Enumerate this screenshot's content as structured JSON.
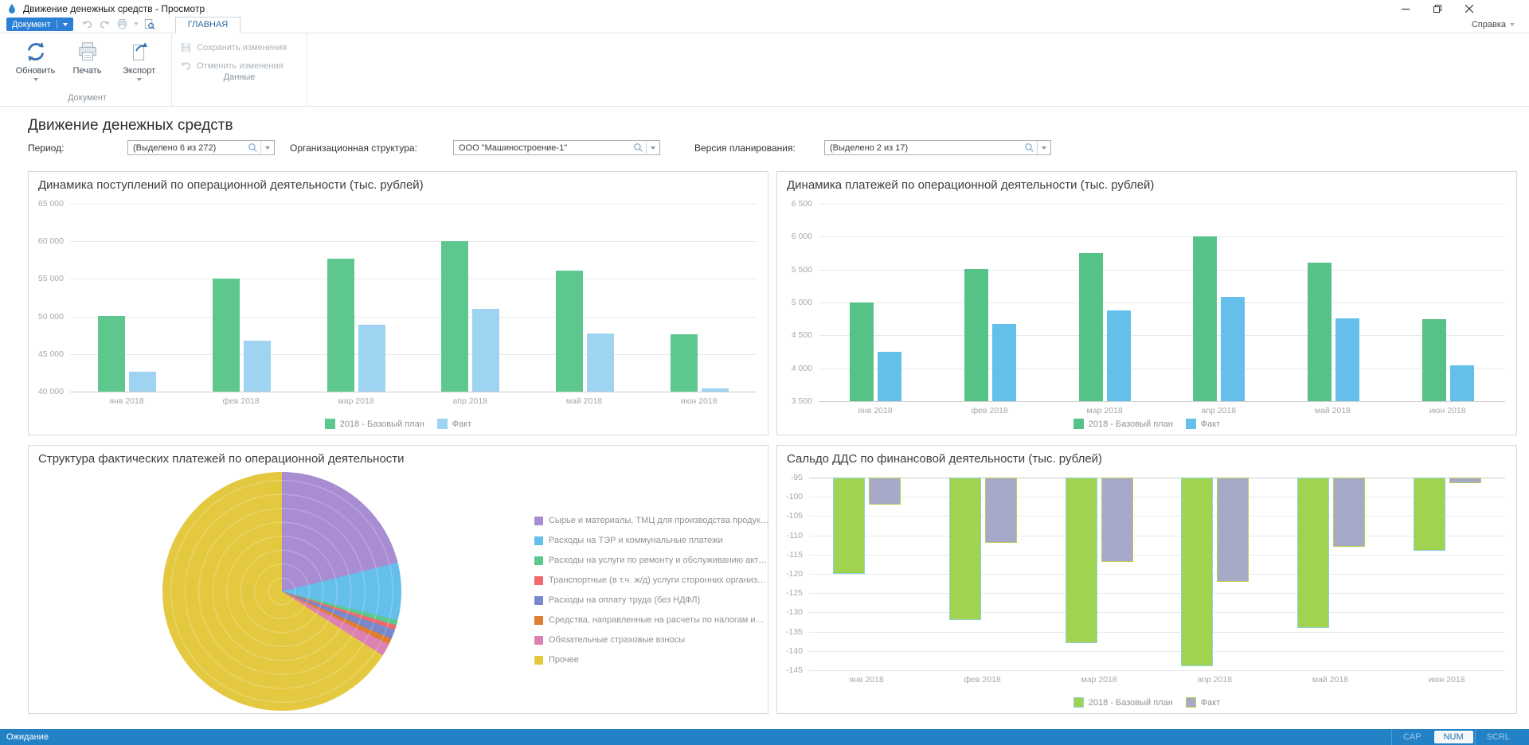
{
  "window": {
    "title": "Движение денежных средств - Просмотр"
  },
  "ribbon": {
    "document_button": "Документ",
    "tab": "ГЛАВНАЯ",
    "help": "Справка",
    "buttons": {
      "refresh": "Обновить",
      "print": "Печать",
      "export": "Экспорт",
      "save": "Сохранить изменения",
      "undo": "Отменить изменения"
    },
    "groups": {
      "document": "Документ",
      "data": "Данные"
    }
  },
  "page": {
    "title": "Движение денежных средств",
    "filters": [
      {
        "label": "Период:",
        "value": "(Выделено 6 из 272)"
      },
      {
        "label": "Организационная структура:",
        "value": "ООО \"Машиностроение-1\""
      },
      {
        "label": "Версия планирования:",
        "value": "(Выделено 2 из 17)"
      }
    ]
  },
  "statusbar": {
    "status": "Ожидание",
    "indicators": [
      "CAP",
      "NUM",
      "SCRL"
    ],
    "active_indicator": "NUM"
  },
  "colors": {
    "plan_green": "#5ec78e",
    "fact_lightblue": "#9ed3f2",
    "fact_blue": "#64bfeb",
    "saldo_green": "#a0d450",
    "saldo_fact_gray": "#a6aac8",
    "statusbar_blue": "#2382c6",
    "accent_blue": "#2b7fd4"
  },
  "chart_data": [
    {
      "type": "bar",
      "title": "Динамика поступлений по операционной деятельности (тыс. рублей)",
      "categories": [
        "янв 2018",
        "фев 2018",
        "мар 2018",
        "апр 2018",
        "май 2018",
        "июн 2018"
      ],
      "series": [
        {
          "name": "2018 - Базовый план",
          "color": "#5ec78e",
          "values": [
            50100,
            55000,
            57700,
            60000,
            56100,
            47600
          ]
        },
        {
          "name": "Факт",
          "color": "#9ed3f2",
          "values": [
            42600,
            46800,
            48900,
            51000,
            47700,
            40400
          ]
        }
      ],
      "ylim": [
        40000,
        65000
      ],
      "ytick_step": 5000,
      "grid": true,
      "legend_position": "bottom"
    },
    {
      "type": "bar",
      "title": "Динамика платежей по операционной деятельности (тыс. рублей)",
      "categories": [
        "янв 2018",
        "фев 2018",
        "мар 2018",
        "апр 2018",
        "май 2018",
        "июн 2018"
      ],
      "series": [
        {
          "name": "2018 - Базовый план",
          "color": "#57c287",
          "values": [
            5000,
            5510,
            5750,
            6010,
            5600,
            4750
          ]
        },
        {
          "name": "Факт",
          "color": "#64bfeb",
          "values": [
            4250,
            4670,
            4880,
            5090,
            4760,
            4050
          ]
        }
      ],
      "ylim": [
        3500,
        6500
      ],
      "ytick_step": 500,
      "grid": true,
      "legend_position": "bottom"
    },
    {
      "type": "pie",
      "title": "Структура фактических платежей по операционной деятельности",
      "slices": [
        {
          "label": "Сырье и материалы, ТМЦ для производства продук…",
          "color": "#a98dd2",
          "pct": 21.1
        },
        {
          "label": "Расходы на ТЭР и коммунальные платежи",
          "color": "#64bfeb",
          "pct": 7.8
        },
        {
          "label": "Расходы на услуги по ремонту и обслуживанию акт…",
          "color": "#5ec78e",
          "pct": 0.7
        },
        {
          "label": "Транспортные (в т.ч. ж/д) услуги сторонних организ…",
          "color": "#f2696b",
          "pct": 0.6
        },
        {
          "label": "Расходы на оплату труда (без НДФЛ)",
          "color": "#7789cc",
          "pct": 1.3
        },
        {
          "label": "Средства, направленные на расчеты по налогам и…",
          "color": "#df7d31",
          "pct": 0.8
        },
        {
          "label": "Обязательные страховые взносы",
          "color": "#dd80b2",
          "pct": 1.7
        },
        {
          "label": "Прочее",
          "color": "#e4c940",
          "pct": 66.0
        }
      ],
      "legend_position": "right"
    },
    {
      "type": "bar",
      "title": "Сальдо ДДС по финансовой деятельности (тыс. рублей)",
      "categories": [
        "янв 2018",
        "фев 2018",
        "мар 2018",
        "апр 2018",
        "май 2018",
        "июн 2018"
      ],
      "series": [
        {
          "name": "2018 - Базовый план",
          "color": "#a0d450",
          "border_color": "#8fd0dc",
          "values": [
            -120,
            -132,
            -138,
            -144,
            -134,
            -114
          ]
        },
        {
          "name": "Факт",
          "color": "#a6aac8",
          "border_color": "#b8cf52",
          "values": [
            -102,
            -112,
            -117,
            -122,
            -113,
            -96.5
          ]
        }
      ],
      "ylim": [
        -145,
        -95
      ],
      "ytick_step": 5,
      "baseline": "top",
      "grid": true,
      "legend_position": "bottom"
    }
  ]
}
